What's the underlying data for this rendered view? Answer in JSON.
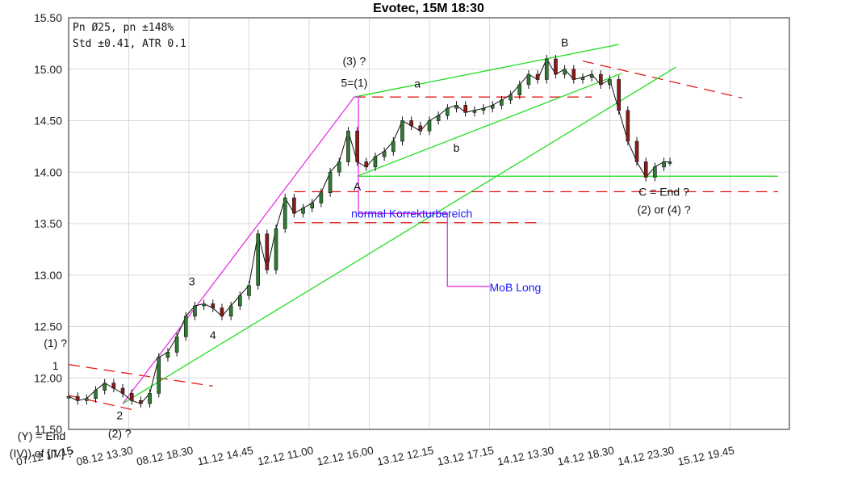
{
  "chart_data": {
    "type": "line",
    "title": "Evotec, 15M 18:30",
    "info_lines": [
      "Pn  Ø25, pn ±148%",
      "Std ±0.41, ATR 0.1"
    ],
    "ylim": [
      11.5,
      15.5
    ],
    "y_ticks": [
      "15.50",
      "15.00",
      "14.50",
      "14.00",
      "13.50",
      "13.00",
      "12.50",
      "12.00",
      "11.50"
    ],
    "y_tick_values": [
      15.5,
      15.0,
      14.5,
      14.0,
      13.5,
      13.0,
      12.5,
      12.0,
      11.5
    ],
    "x_ticks": [
      "07.12 17.15",
      "08.12 13.30",
      "08.12 18.30",
      "11.12 14.45",
      "12.12 11.00",
      "12.12 16.00",
      "13.12 12.15",
      "13.12 17.15",
      "14.12 13.30",
      "14.12 18.30",
      "14.12 23.30",
      "15.12 19.45"
    ],
    "xlim": [
      0,
      12
    ],
    "grid": true,
    "price_series": {
      "name": "",
      "x": [
        0.0,
        0.15,
        0.3,
        0.45,
        0.6,
        0.75,
        0.9,
        1.05,
        1.2,
        1.35,
        1.5,
        1.65,
        1.8,
        1.95,
        2.1,
        2.25,
        2.4,
        2.55,
        2.7,
        2.85,
        3.0,
        3.15,
        3.3,
        3.45,
        3.6,
        3.75,
        3.9,
        4.05,
        4.2,
        4.35,
        4.5,
        4.65,
        4.8,
        4.95,
        5.1,
        5.25,
        5.4,
        5.55,
        5.7,
        5.85,
        6.0,
        6.15,
        6.3,
        6.45,
        6.6,
        6.75,
        6.9,
        7.05,
        7.2,
        7.35,
        7.5,
        7.65,
        7.8,
        7.95,
        8.1,
        8.25,
        8.4,
        8.55,
        8.7,
        8.85,
        9.0,
        9.15,
        9.3,
        9.45,
        9.6,
        9.75,
        9.9,
        10.0
      ],
      "y": [
        11.82,
        11.78,
        11.8,
        11.88,
        11.95,
        11.9,
        11.85,
        11.78,
        11.75,
        11.85,
        12.2,
        12.25,
        12.4,
        12.6,
        12.7,
        12.72,
        12.68,
        12.6,
        12.7,
        12.8,
        12.9,
        13.4,
        13.05,
        13.45,
        13.75,
        13.6,
        13.65,
        13.7,
        13.8,
        14.0,
        14.1,
        14.4,
        14.1,
        14.05,
        14.15,
        14.2,
        14.3,
        14.5,
        14.45,
        14.4,
        14.5,
        14.55,
        14.62,
        14.65,
        14.58,
        14.6,
        14.62,
        14.65,
        14.7,
        14.75,
        14.85,
        14.95,
        14.9,
        15.1,
        14.95,
        15.0,
        14.9,
        14.92,
        14.95,
        14.85,
        14.9,
        14.6,
        14.3,
        14.1,
        13.95,
        14.05,
        14.1,
        14.1
      ]
    },
    "annotations": [
      {
        "text": "(3) ?",
        "x": 4.75,
        "y": 15.04
      },
      {
        "text": "5=(1)",
        "x": 4.75,
        "y": 14.83
      },
      {
        "text": "a",
        "x": 5.8,
        "y": 14.82
      },
      {
        "text": "b",
        "x": 6.45,
        "y": 14.2
      },
      {
        "text": "B",
        "x": 8.25,
        "y": 15.22
      },
      {
        "text": "A",
        "x": 4.8,
        "y": 13.82
      },
      {
        "text": "3",
        "x": 2.05,
        "y": 12.9
      },
      {
        "text": "4",
        "x": 2.4,
        "y": 12.38
      },
      {
        "text": "1",
        "x": -0.22,
        "y": 12.08
      },
      {
        "text": "(1) ?",
        "x": -0.22,
        "y": 12.3
      },
      {
        "text": "2",
        "x": 0.85,
        "y": 11.6
      },
      {
        "text": "(2) ?",
        "x": 0.85,
        "y": 11.42
      },
      {
        "text": "C = End ?",
        "x": 9.9,
        "y": 13.77
      },
      {
        "text": "(2) or (4) ?",
        "x": 9.9,
        "y": 13.6
      },
      {
        "text": "(Y) = End",
        "x": -0.45,
        "y": 11.4
      },
      {
        "text": "(IV)) of [IV] ?",
        "x": -0.45,
        "y": 11.23
      }
    ],
    "blue_labels": [
      {
        "text": "normal Korrekturbereich",
        "x": 4.7,
        "y": 13.6
      },
      {
        "text": "MoB Long",
        "x": 7.0,
        "y": 12.88
      }
    ],
    "green_lines": [
      {
        "x": [
          0.9,
          10.1
        ],
        "y": [
          11.75,
          15.02
        ]
      },
      {
        "x": [
          4.75,
          9.15
        ],
        "y": [
          14.73,
          15.24
        ]
      },
      {
        "x": [
          4.8,
          9.2
        ],
        "y": [
          13.96,
          14.96
        ]
      },
      {
        "x": [
          4.8,
          11.8
        ],
        "y": [
          13.96,
          13.96
        ]
      }
    ],
    "magenta_lines": [
      {
        "x": [
          0.9,
          4.75
        ],
        "y": [
          11.75,
          14.73
        ]
      },
      {
        "x": [
          4.75,
          4.82,
          4.82,
          6.3,
          6.3,
          7.0
        ],
        "y": [
          14.73,
          14.73,
          13.6,
          13.6,
          12.89,
          12.89
        ]
      }
    ],
    "red_dashed_lines": [
      {
        "x": [
          0.0,
          2.4
        ],
        "y": [
          12.13,
          11.92
        ]
      },
      {
        "x": [
          0.0,
          1.15
        ],
        "y": [
          11.83,
          11.68
        ]
      },
      {
        "x": [
          4.75,
          8.7
        ],
        "y": [
          14.73,
          14.73
        ]
      },
      {
        "x": [
          3.75,
          11.8
        ],
        "y": [
          13.81,
          13.81
        ]
      },
      {
        "x": [
          3.75,
          7.8
        ],
        "y": [
          13.51,
          13.51
        ]
      },
      {
        "x": [
          8.55,
          11.2
        ],
        "y": [
          15.08,
          14.72
        ]
      }
    ]
  }
}
